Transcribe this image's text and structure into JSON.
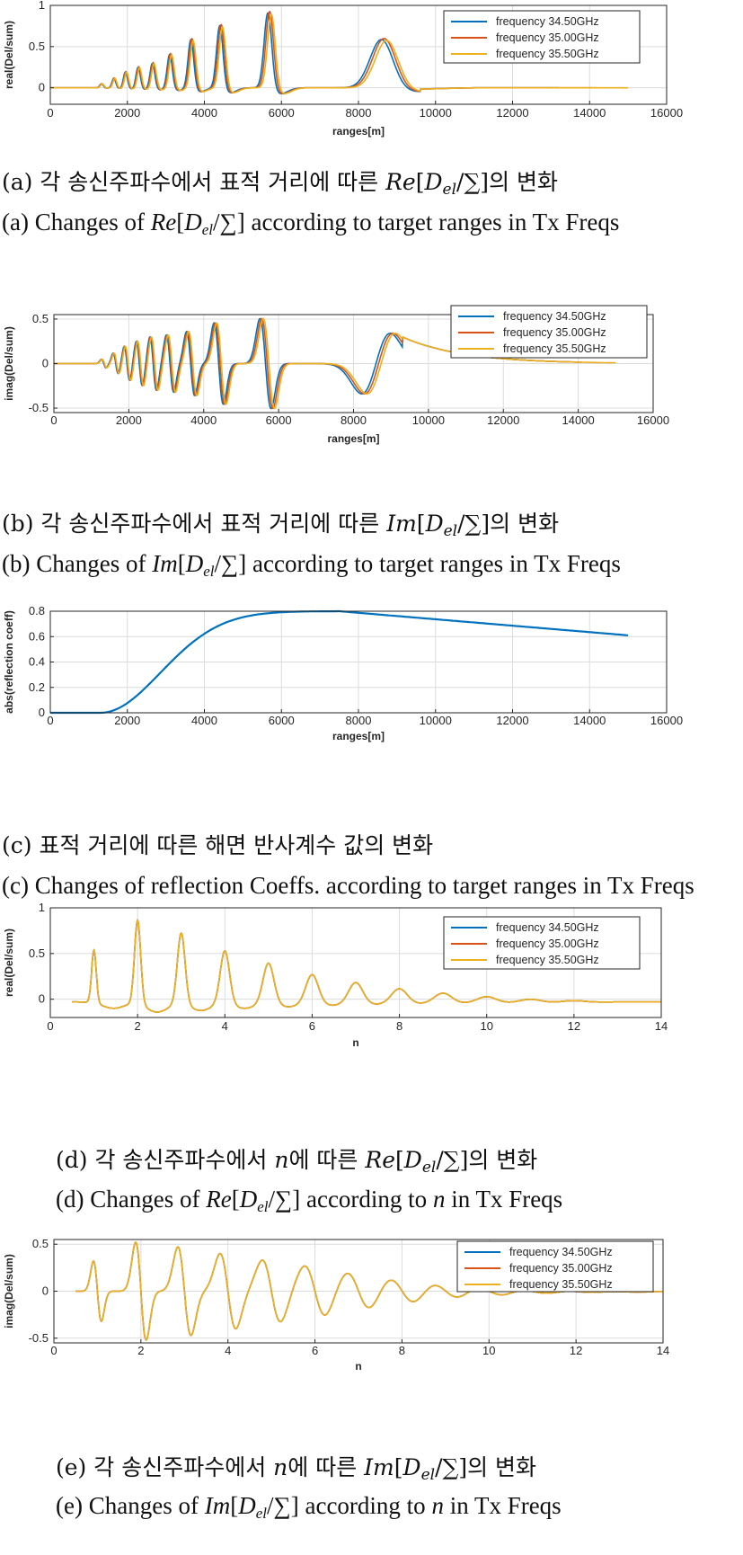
{
  "colors": {
    "s1": "#0072BD",
    "s2": "#D95319",
    "s3": "#EDB120"
  },
  "charts": [
    {
      "id": "a",
      "type": "line",
      "ylabel": "real(Del/sum)",
      "xlabel": "ranges[m]",
      "xlim": [
        0,
        16000
      ],
      "ylim": [
        -0.2,
        1.0
      ],
      "xticks": [
        "0",
        "2000",
        "4000",
        "6000",
        "8000",
        "10000",
        "12000",
        "14000",
        "16000"
      ],
      "yticks": [
        "0",
        "0.5",
        "1"
      ],
      "legend": [
        "frequency 34.50GHz",
        "frequency 35.00GHz",
        "frequency 35.50GHz"
      ]
    },
    {
      "id": "b",
      "type": "line",
      "ylabel": "imag(Del/sum)",
      "xlabel": "ranges[m]",
      "xlim": [
        0,
        16000
      ],
      "ylim": [
        -0.55,
        0.55
      ],
      "xticks": [
        "0",
        "2000",
        "4000",
        "6000",
        "8000",
        "10000",
        "12000",
        "14000",
        "16000"
      ],
      "yticks": [
        "-0.5",
        "0",
        "0.5"
      ],
      "legend": [
        "frequency 34.50GHz",
        "frequency 35.00GHz",
        "frequency 35.50GHz"
      ]
    },
    {
      "id": "c",
      "type": "line",
      "ylabel": "abs(reflection coeff)",
      "xlabel": "ranges[m]",
      "xlim": [
        0,
        16000
      ],
      "ylim": [
        0,
        0.8
      ],
      "xticks": [
        "0",
        "2000",
        "4000",
        "6000",
        "8000",
        "10000",
        "12000",
        "14000",
        "16000"
      ],
      "yticks": [
        "0",
        "0.2",
        "0.4",
        "0.6",
        "0.8"
      ]
    },
    {
      "id": "d",
      "type": "line",
      "ylabel": "real(Del/sum)",
      "xlabel": "n",
      "xlim": [
        0,
        14
      ],
      "ylim": [
        -0.2,
        1.0
      ],
      "xticks": [
        "0",
        "2",
        "4",
        "6",
        "8",
        "10",
        "12",
        "14"
      ],
      "yticks": [
        "0",
        "0.5",
        "1"
      ],
      "legend": [
        "frequency 34.50GHz",
        "frequency 35.00GHz",
        "frequency 35.50GHz"
      ]
    },
    {
      "id": "e",
      "type": "line",
      "ylabel": "imag(Del/sum)",
      "xlabel": "n",
      "xlim": [
        0,
        14
      ],
      "ylim": [
        -0.55,
        0.55
      ],
      "xticks": [
        "0",
        "2",
        "4",
        "6",
        "8",
        "10",
        "12",
        "14"
      ],
      "yticks": [
        "-0.5",
        "0",
        "0.5"
      ],
      "legend": [
        "frequency 34.50GHz",
        "frequency 35.00GHz",
        "frequency 35.50GHz"
      ]
    }
  ],
  "captions": {
    "a_ko_pre": "(a) 각 송신주파수에서 표적 거리에 따른 ",
    "a_ko_post": "의 변화",
    "a_en_pre": "(a) Changes of ",
    "a_en_post": " according to target ranges in Tx Freqs",
    "b_ko_pre": "(b) 각 송신주파수에서 표적 거리에 따른 ",
    "b_ko_post": "의 변화",
    "b_en_pre": "(b) Changes of ",
    "b_en_post": " according to target ranges in Tx Freqs",
    "c_ko": "(c) 표적 거리에 따른 해면 반사계수 값의 변화",
    "c_en": "(c) Changes of reflection Coeffs. according to target ranges in Tx Freqs",
    "d_ko_pre": "(d) 각 송신주파수에서 ",
    "d_ko_mid": "에 따른 ",
    "d_ko_post": "의 변화",
    "d_en_pre": "(d) Changes of ",
    "d_en_mid": " according to ",
    "d_en_post": " in Tx Freqs",
    "e_ko_pre": "(e) 각 송신주파수에서 ",
    "e_ko_mid": "에 따른 ",
    "e_ko_post": "의 변화",
    "e_en_pre": "(e) Changes of ",
    "e_en_mid": " according to ",
    "e_en_post": " in Tx Freqs",
    "re": "Re",
    "im": "Im",
    "del_d": "D",
    "del_sub": "el",
    "del_sum": "/∑]",
    "open_br": "[",
    "n": "n"
  }
}
